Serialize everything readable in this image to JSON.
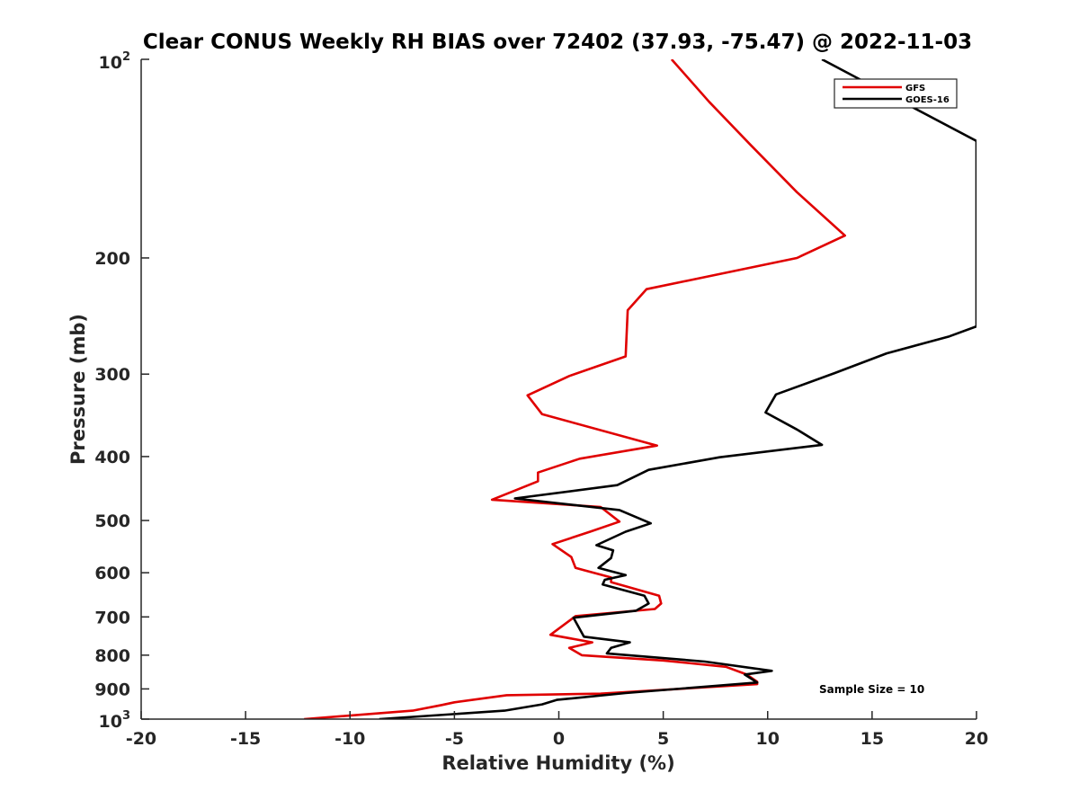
{
  "chart_data": {
    "type": "line",
    "title": "Clear CONUS Weekly RH BIAS over 72402 (37.93, -75.47) @ 2022-11-03",
    "xlabel": "Relative Humidity (%)",
    "ylabel": "Pressure (mb)",
    "xlim": [
      -20,
      20
    ],
    "ylim": [
      100,
      1000
    ],
    "yscale": "log",
    "y_reversed": true,
    "x_ticks": [
      -20,
      -15,
      -10,
      -5,
      0,
      5,
      10,
      15,
      20
    ],
    "x_tick_labels": [
      "-20",
      "-15",
      "-10",
      "-5",
      "0",
      "5",
      "10",
      "15",
      "20"
    ],
    "y_ticks": [
      200,
      300,
      400,
      500,
      600,
      700,
      800,
      900
    ],
    "y_tick_labels": [
      "200",
      "300",
      "400",
      "500",
      "600",
      "700",
      "800",
      "900"
    ],
    "y_top_label": {
      "base": "10",
      "exp": "2"
    },
    "y_bottom_label": {
      "base": "10",
      "exp": "3"
    },
    "grid": false,
    "legend_position": "top-right",
    "annotation": "Sample Size = 10",
    "series": [
      {
        "name": "GFS",
        "color": "#e00000",
        "points": [
          [
            5.4,
            100
          ],
          [
            7.2,
            116
          ],
          [
            9.2,
            135
          ],
          [
            11.4,
            159
          ],
          [
            13.7,
            185
          ],
          [
            11.4,
            200
          ],
          [
            4.2,
            223
          ],
          [
            3.3,
            240
          ],
          [
            3.2,
            282
          ],
          [
            0.5,
            302
          ],
          [
            -1.5,
            323
          ],
          [
            -0.8,
            345
          ],
          [
            4.7,
            385
          ],
          [
            1.0,
            403
          ],
          [
            -1.0,
            423
          ],
          [
            -1.0,
            436
          ],
          [
            -3.2,
            465
          ],
          [
            2.0,
            477
          ],
          [
            2.9,
            502
          ],
          [
            1.5,
            520
          ],
          [
            -0.3,
            543
          ],
          [
            0.6,
            568
          ],
          [
            0.8,
            590
          ],
          [
            2.5,
            610
          ],
          [
            2.5,
            620
          ],
          [
            4.8,
            650
          ],
          [
            4.9,
            668
          ],
          [
            4.6,
            681
          ],
          [
            0.8,
            698
          ],
          [
            -0.4,
            745
          ],
          [
            1.6,
            765
          ],
          [
            0.5,
            780
          ],
          [
            1.1,
            800
          ],
          [
            5.0,
            815
          ],
          [
            8.0,
            833
          ],
          [
            9.0,
            856
          ],
          [
            9.5,
            878
          ],
          [
            9.5,
            885
          ],
          [
            2.0,
            915
          ],
          [
            -2.5,
            920
          ],
          [
            -5.0,
            943
          ],
          [
            -5.6,
            952
          ],
          [
            -7.0,
            971
          ],
          [
            -12.2,
            1000
          ]
        ]
      },
      {
        "name": "GOES-16",
        "color": "#000000",
        "points": [
          [
            12.6,
            100
          ],
          [
            20.0,
            133
          ],
          [
            20.0,
            254
          ],
          [
            18.7,
            263
          ],
          [
            15.7,
            279
          ],
          [
            13.2,
            299
          ],
          [
            10.4,
            322
          ],
          [
            9.9,
            343
          ],
          [
            11.4,
            364
          ],
          [
            12.6,
            384
          ],
          [
            7.7,
            401
          ],
          [
            4.3,
            419
          ],
          [
            2.8,
            442
          ],
          [
            -2.1,
            463
          ],
          [
            2.9,
            482
          ],
          [
            4.4,
            505
          ],
          [
            3.2,
            520
          ],
          [
            1.8,
            545
          ],
          [
            2.6,
            555
          ],
          [
            2.5,
            570
          ],
          [
            1.9,
            590
          ],
          [
            3.2,
            605
          ],
          [
            2.2,
            615
          ],
          [
            2.1,
            625
          ],
          [
            4.1,
            650
          ],
          [
            4.3,
            668
          ],
          [
            3.7,
            685
          ],
          [
            0.7,
            702
          ],
          [
            1.0,
            730
          ],
          [
            1.2,
            750
          ],
          [
            3.4,
            765
          ],
          [
            2.5,
            780
          ],
          [
            2.3,
            795
          ],
          [
            7.0,
            818
          ],
          [
            10.2,
            845
          ],
          [
            8.9,
            856
          ],
          [
            9.5,
            880
          ],
          [
            3.2,
            913
          ],
          [
            -0.1,
            935
          ],
          [
            -0.8,
            950
          ],
          [
            -2.6,
            971
          ],
          [
            -8.6,
            1000
          ]
        ]
      }
    ]
  }
}
